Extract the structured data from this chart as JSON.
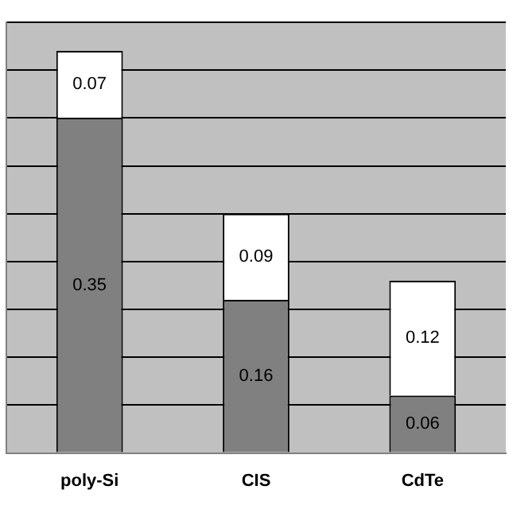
{
  "chart_data": {
    "type": "bar",
    "stacked": true,
    "categories": [
      "poly-Si",
      "CIS",
      "CdTe"
    ],
    "series": [
      {
        "color": "#808080",
        "values": [
          0.35,
          0.16,
          0.06
        ]
      },
      {
        "color": "#ffffff",
        "values": [
          0.07,
          0.09,
          0.12
        ]
      }
    ],
    "ylim": [
      0,
      0.45
    ],
    "yticks": [
      0,
      {
        "value": 0.05,
        "label": null
      },
      {
        "value": 0.1,
        "label": null
      },
      {
        "value": 0.15,
        "label": null
      },
      {
        "value": 0.2,
        "label": null
      },
      {
        "value": 0.25,
        "label": null
      },
      {
        "value": 0.3,
        "label": null
      },
      {
        "value": 0.35,
        "label": null
      },
      {
        "value": 0.4,
        "label": null
      },
      {
        "value": 0.45,
        "label": null
      }
    ],
    "grid": "y",
    "tick_labels": "x",
    "data_labels": true,
    "legend": false
  }
}
